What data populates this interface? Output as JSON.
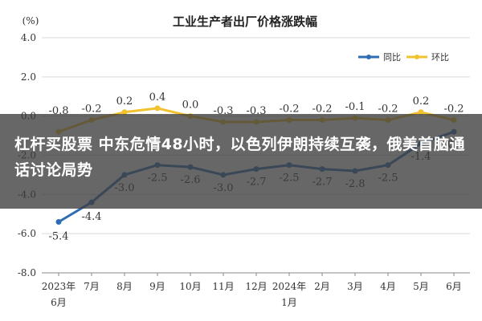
{
  "chart_data": {
    "type": "line",
    "title": "工业生产者出厂价格涨跌幅",
    "unit_label": "(%)",
    "categories": [
      "2023年\n6月",
      "7月",
      "8月",
      "9月",
      "10月",
      "11月",
      "12月",
      "2024年\n1月",
      "2月",
      "3月",
      "4月",
      "5月",
      "6月"
    ],
    "ylim": [
      -8.0,
      4.0
    ],
    "yticks": [
      "4.0",
      "2.0",
      "0.0",
      "-2.0",
      "-4.0",
      "-6.0",
      "-8.0"
    ],
    "ytick_values": [
      4.0,
      2.0,
      0.0,
      -2.0,
      -4.0,
      -6.0,
      -8.0
    ],
    "grid": true,
    "legend_position": "top-right",
    "series": [
      {
        "name": "同比",
        "color": "#2e6db4",
        "values": [
          -5.4,
          -4.4,
          -3.0,
          -2.5,
          -2.6,
          -3.0,
          -2.7,
          -2.5,
          -2.7,
          -2.8,
          -2.5,
          -1.4,
          -0.8
        ],
        "labels": [
          "-5.4",
          "-4.4",
          "-3.0",
          "-2.5",
          "-2.6",
          "-3.0",
          "-2.7",
          "-2.5",
          "-2.7",
          "-2.8",
          "-2.5",
          "-1.4",
          "-0.8"
        ]
      },
      {
        "name": "环比",
        "color": "#f2c12e",
        "values": [
          -0.8,
          -0.2,
          0.2,
          0.4,
          0.0,
          -0.3,
          -0.3,
          -0.2,
          -0.2,
          -0.1,
          -0.2,
          0.2,
          -0.2
        ],
        "labels": [
          "-0.8",
          "-0.2",
          "0.2",
          "0.4",
          "0.0",
          "-0.3",
          "-0.3",
          "-0.2",
          "-0.2",
          "-0.1",
          "-0.2",
          "0.2",
          "-0.2"
        ]
      }
    ]
  },
  "banner": {
    "headline": "杠杆买股票 中东危情48小时，以色列伊朗持续互袭，俄美首脑通话讨论局势"
  }
}
